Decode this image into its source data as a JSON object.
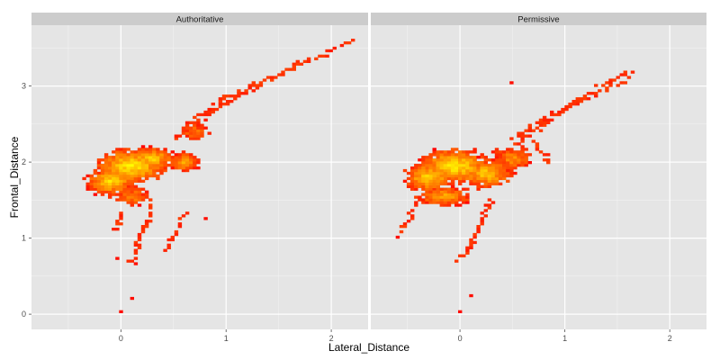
{
  "chart_data": {
    "type": "heatmap",
    "xlabel": "Lateral_Distance",
    "ylabel": "Frontal_Distance",
    "xlim": [
      -0.85,
      2.35
    ],
    "ylim": [
      -0.2,
      3.8
    ],
    "x_ticks": [
      0,
      1,
      2
    ],
    "y_ticks": [
      0,
      1,
      2,
      3
    ],
    "x_tick_labels": [
      "0",
      "1",
      "2"
    ],
    "y_tick_labels": [
      "0",
      "1",
      "2",
      "3"
    ],
    "grid": true,
    "facet_by": "style",
    "color_scale": {
      "low": "#ff0000",
      "high": "#ffff00"
    },
    "colors": {
      "panel_bg": "#e5e5e5",
      "strip_bg": "#cccccc",
      "grid_major": "#ffffff",
      "grid_minor": "#f2f2f2"
    },
    "panels": [
      {
        "label": "Authoritative",
        "blobs": [
          {
            "cx": 0.1,
            "cy": 1.95,
            "rx": 0.32,
            "ry": 0.22,
            "intensity": 1.0
          },
          {
            "cx": -0.1,
            "cy": 1.75,
            "rx": 0.22,
            "ry": 0.18,
            "intensity": 0.9
          },
          {
            "cx": 0.3,
            "cy": 2.05,
            "rx": 0.2,
            "ry": 0.15,
            "intensity": 0.85
          },
          {
            "cx": 0.6,
            "cy": 2.0,
            "rx": 0.15,
            "ry": 0.12,
            "intensity": 0.7
          },
          {
            "cx": 0.7,
            "cy": 2.4,
            "rx": 0.12,
            "ry": 0.1,
            "intensity": 0.5
          },
          {
            "cx": 0.1,
            "cy": 1.55,
            "rx": 0.15,
            "ry": 0.12,
            "intensity": 0.6
          }
        ],
        "trails": [
          {
            "pts": [
              [
                0.5,
                2.3
              ],
              [
                0.9,
                2.7
              ],
              [
                1.3,
                3.0
              ],
              [
                1.7,
                3.3
              ],
              [
                2.0,
                3.45
              ],
              [
                2.2,
                3.6
              ]
            ],
            "intensity": 0.1
          },
          {
            "pts": [
              [
                0.6,
                2.45
              ],
              [
                1.0,
                2.85
              ],
              [
                1.5,
                3.15
              ],
              [
                1.9,
                3.4
              ]
            ],
            "intensity": 0.1
          },
          {
            "pts": [
              [
                0.3,
                1.5
              ],
              [
                0.25,
                1.2
              ],
              [
                0.15,
                0.9
              ],
              [
                0.1,
                0.7
              ]
            ],
            "intensity": 0.1
          },
          {
            "pts": [
              [
                0.6,
                1.3
              ],
              [
                0.5,
                1.05
              ],
              [
                0.4,
                0.8
              ]
            ],
            "intensity": 0.1
          },
          {
            "pts": [
              [
                0.0,
                1.3
              ],
              [
                -0.05,
                1.1
              ]
            ],
            "intensity": 0.1
          }
        ],
        "specks": [
          [
            0.0,
            0.02
          ],
          [
            0.12,
            0.2
          ],
          [
            -0.02,
            0.72
          ],
          [
            0.8,
            1.25
          ],
          [
            0.15,
            0.65
          ]
        ]
      },
      {
        "label": "Permissive",
        "blobs": [
          {
            "cx": -0.05,
            "cy": 1.95,
            "rx": 0.32,
            "ry": 0.22,
            "intensity": 1.0
          },
          {
            "cx": -0.3,
            "cy": 1.8,
            "rx": 0.22,
            "ry": 0.18,
            "intensity": 0.9
          },
          {
            "cx": 0.25,
            "cy": 1.85,
            "rx": 0.25,
            "ry": 0.18,
            "intensity": 0.85
          },
          {
            "cx": 0.5,
            "cy": 2.05,
            "rx": 0.18,
            "ry": 0.15,
            "intensity": 0.6
          },
          {
            "cx": -0.15,
            "cy": 1.55,
            "rx": 0.25,
            "ry": 0.12,
            "intensity": 0.7
          }
        ],
        "trails": [
          {
            "pts": [
              [
                0.4,
                2.1
              ],
              [
                0.8,
                2.5
              ],
              [
                1.1,
                2.8
              ],
              [
                1.4,
                3.05
              ],
              [
                1.65,
                3.2
              ]
            ],
            "intensity": 0.1
          },
          {
            "pts": [
              [
                0.5,
                2.3
              ],
              [
                0.9,
                2.65
              ],
              [
                1.3,
                2.9
              ],
              [
                1.6,
                3.1
              ]
            ],
            "intensity": 0.1
          },
          {
            "pts": [
              [
                0.3,
                1.5
              ],
              [
                0.2,
                1.2
              ],
              [
                0.1,
                0.9
              ],
              [
                0.0,
                0.72
              ]
            ],
            "intensity": 0.1
          },
          {
            "pts": [
              [
                -0.4,
                1.5
              ],
              [
                -0.55,
                1.1
              ]
            ],
            "intensity": 0.1
          },
          {
            "pts": [
              [
                0.7,
                2.3
              ],
              [
                0.85,
                2.0
              ]
            ],
            "intensity": 0.1
          }
        ],
        "specks": [
          [
            0.0,
            0.02
          ],
          [
            0.12,
            0.25
          ],
          [
            0.5,
            3.05
          ],
          [
            -0.6,
            1.0
          ]
        ]
      }
    ]
  }
}
